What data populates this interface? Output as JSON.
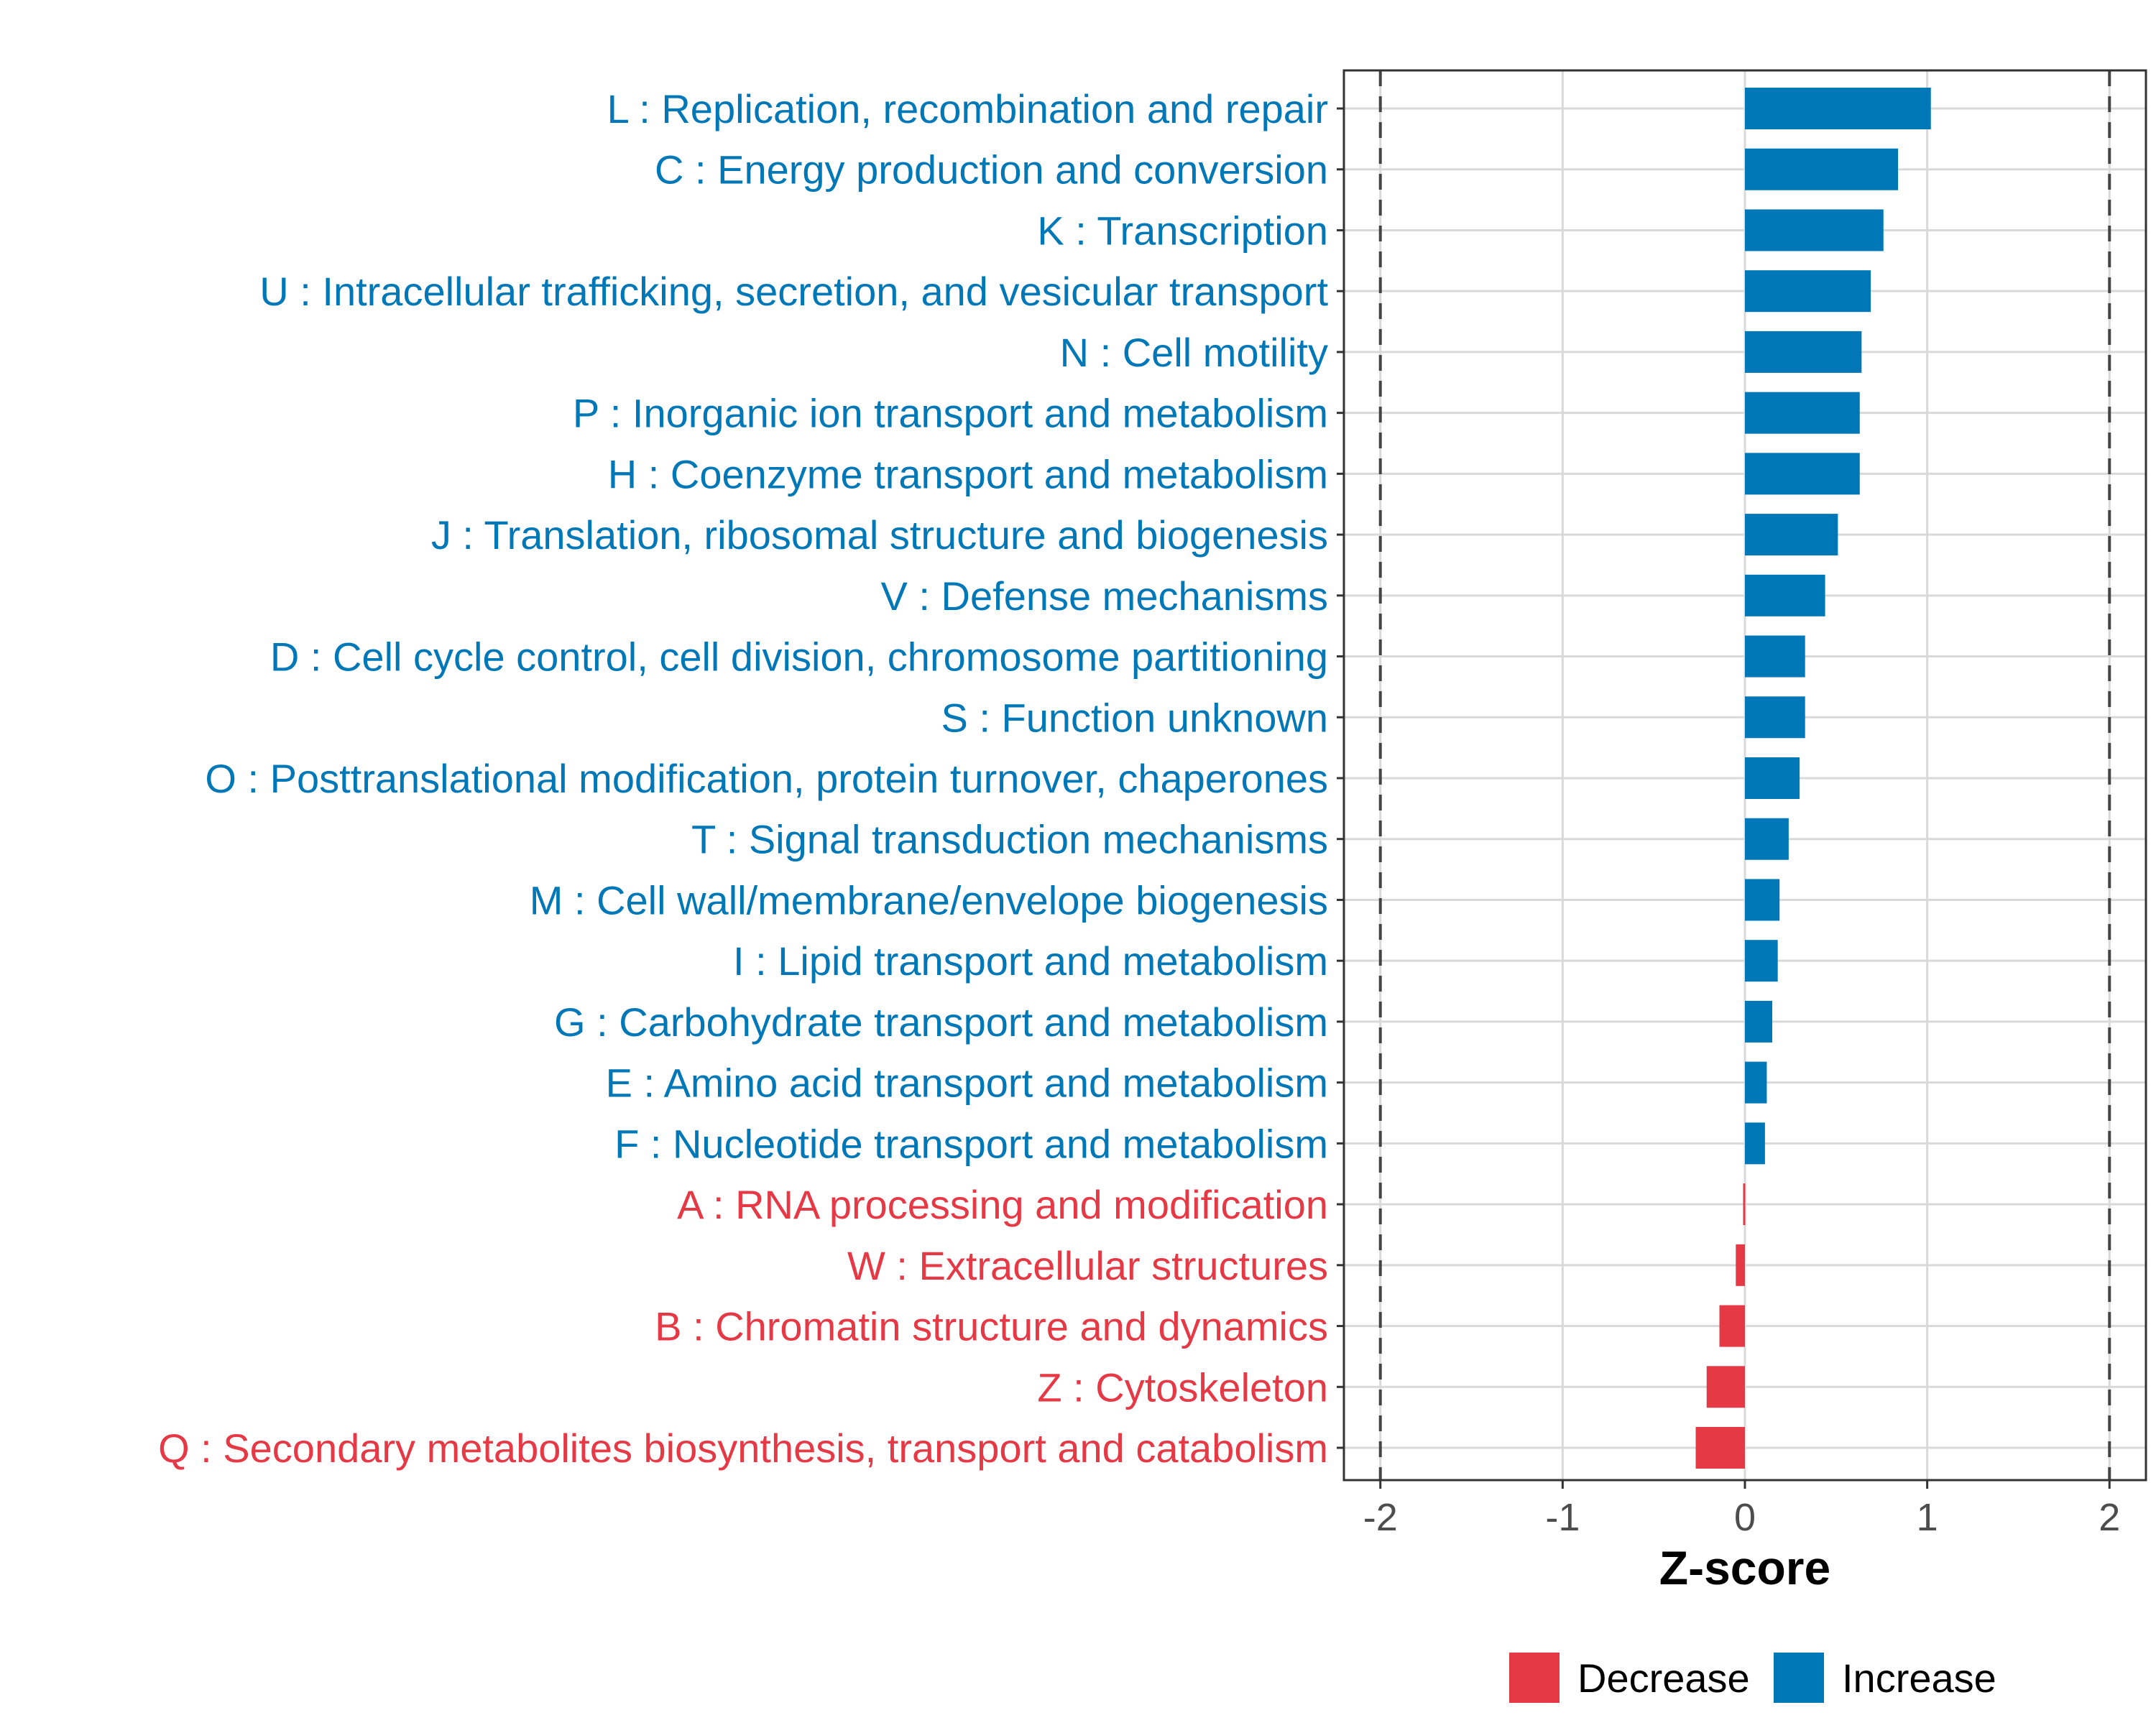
{
  "chart_data": {
    "type": "bar",
    "orientation": "horizontal",
    "title": "",
    "xlabel": "Z-score",
    "ylabel": "",
    "xlim": [
      -2.2,
      2.2
    ],
    "x_ticks": [
      -2,
      -1,
      0,
      1,
      2
    ],
    "x_tick_labels": [
      "-2",
      "-1",
      "0",
      "1",
      "2"
    ],
    "reference_lines": [
      -2,
      2
    ],
    "grid": true,
    "legend_position": "bottom",
    "colors": {
      "Decrease": "#e63946",
      "Increase": "#0077b6"
    },
    "legend": [
      {
        "name": "Decrease",
        "color": "#e63946"
      },
      {
        "name": "Increase",
        "color": "#0077b6"
      }
    ],
    "categories": [
      {
        "label": "L : Replication, recombination and repair",
        "value": 1.02,
        "group": "Increase"
      },
      {
        "label": "C : Energy production and conversion",
        "value": 0.84,
        "group": "Increase"
      },
      {
        "label": "K : Transcription",
        "value": 0.76,
        "group": "Increase"
      },
      {
        "label": "U : Intracellular trafficking, secretion, and vesicular transport",
        "value": 0.69,
        "group": "Increase"
      },
      {
        "label": "N : Cell motility",
        "value": 0.64,
        "group": "Increase"
      },
      {
        "label": "P : Inorganic ion transport and metabolism",
        "value": 0.63,
        "group": "Increase"
      },
      {
        "label": "H : Coenzyme transport and metabolism",
        "value": 0.63,
        "group": "Increase"
      },
      {
        "label": "J : Translation, ribosomal structure and biogenesis",
        "value": 0.51,
        "group": "Increase"
      },
      {
        "label": "V : Defense mechanisms",
        "value": 0.44,
        "group": "Increase"
      },
      {
        "label": "D : Cell cycle control, cell division, chromosome partitioning",
        "value": 0.33,
        "group": "Increase"
      },
      {
        "label": "S : Function unknown",
        "value": 0.33,
        "group": "Increase"
      },
      {
        "label": "O : Posttranslational modification, protein turnover, chaperones",
        "value": 0.3,
        "group": "Increase"
      },
      {
        "label": "T : Signal transduction mechanisms",
        "value": 0.24,
        "group": "Increase"
      },
      {
        "label": "M : Cell wall/membrane/envelope biogenesis",
        "value": 0.19,
        "group": "Increase"
      },
      {
        "label": "I : Lipid transport and metabolism",
        "value": 0.18,
        "group": "Increase"
      },
      {
        "label": "G : Carbohydrate transport and metabolism",
        "value": 0.15,
        "group": "Increase"
      },
      {
        "label": "E : Amino acid transport and metabolism",
        "value": 0.12,
        "group": "Increase"
      },
      {
        "label": "F : Nucleotide transport and metabolism",
        "value": 0.11,
        "group": "Increase"
      },
      {
        "label": "A : RNA processing and modification",
        "value": -0.01,
        "group": "Decrease"
      },
      {
        "label": "W : Extracellular structures",
        "value": -0.05,
        "group": "Decrease"
      },
      {
        "label": "B : Chromatin structure and dynamics",
        "value": -0.14,
        "group": "Decrease"
      },
      {
        "label": "Z : Cytoskeleton",
        "value": -0.21,
        "group": "Decrease"
      },
      {
        "label": "Q : Secondary metabolites biosynthesis, transport and catabolism",
        "value": -0.27,
        "group": "Decrease"
      }
    ]
  }
}
